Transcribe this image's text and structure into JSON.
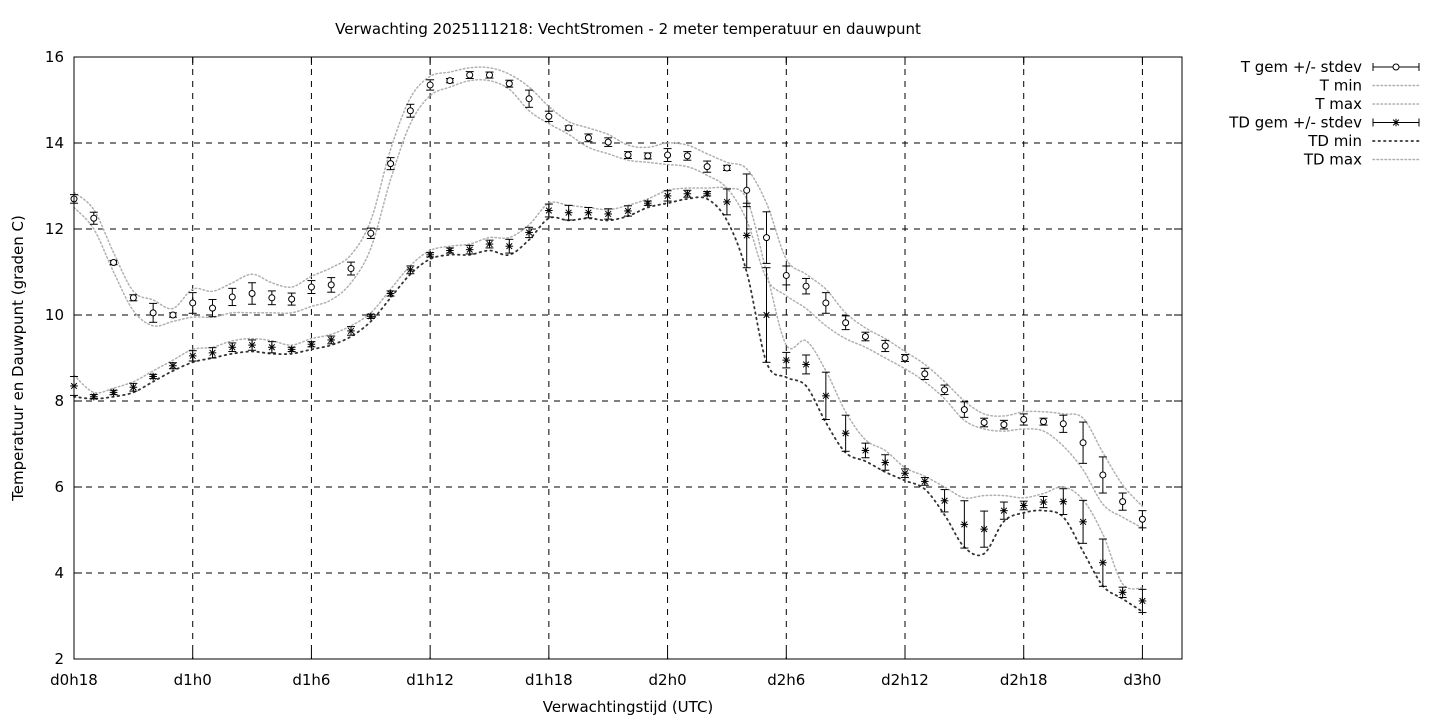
{
  "chart_data": {
    "type": "line",
    "title": "Verwachting 2025111218: VechtStromen - 2 meter temperatuur en dauwpunt",
    "xlabel": "Verwachtingstijd (UTC)",
    "ylabel": "Temperatuur en Dauwpunt (graden C)",
    "xlim": [
      0,
      56
    ],
    "ylim": [
      2,
      16
    ],
    "grid": true,
    "legend_position": "outside-right",
    "x_ticks": [
      {
        "x": 0,
        "label": "d0h18"
      },
      {
        "x": 6,
        "label": "d1h0"
      },
      {
        "x": 12,
        "label": "d1h6"
      },
      {
        "x": 18,
        "label": "d1h12"
      },
      {
        "x": 24,
        "label": "d1h18"
      },
      {
        "x": 30,
        "label": "d2h0"
      },
      {
        "x": 36,
        "label": "d2h6"
      },
      {
        "x": 42,
        "label": "d2h12"
      },
      {
        "x": 48,
        "label": "d2h18"
      },
      {
        "x": 54,
        "label": "d3h0"
      }
    ],
    "y_ticks": [
      2,
      4,
      6,
      8,
      10,
      12,
      14,
      16
    ],
    "legend": [
      {
        "label": "T gem +/- stdev",
        "style": "errorbar-circle"
      },
      {
        "label": "T min",
        "style": "dotted-light"
      },
      {
        "label": "T max",
        "style": "dotted-light"
      },
      {
        "label": "TD gem +/- stdev",
        "style": "errorbar-star"
      },
      {
        "label": "TD min",
        "style": "dotted-dark"
      },
      {
        "label": "TD max",
        "style": "dotted-light"
      }
    ],
    "x": [
      0,
      1,
      2,
      3,
      4,
      5,
      6,
      7,
      8,
      9,
      10,
      11,
      12,
      13,
      14,
      15,
      16,
      17,
      18,
      19,
      20,
      21,
      22,
      23,
      24,
      25,
      26,
      27,
      28,
      29,
      30,
      31,
      32,
      33,
      34,
      35,
      36,
      37,
      38,
      39,
      40,
      41,
      42,
      43,
      44,
      45,
      46,
      47,
      48,
      49,
      50,
      51,
      52,
      53,
      54
    ],
    "series": [
      {
        "name": "T gem +/- stdev",
        "marker": "circle",
        "values": [
          12.7,
          12.25,
          11.22,
          10.4,
          10.05,
          10.0,
          10.28,
          10.16,
          10.42,
          10.5,
          10.4,
          10.37,
          10.65,
          10.7,
          11.08,
          11.9,
          13.52,
          14.75,
          15.35,
          15.45,
          15.58,
          15.58,
          15.38,
          15.03,
          14.62,
          14.35,
          14.12,
          14.02,
          13.72,
          13.7,
          13.72,
          13.7,
          13.45,
          13.42,
          12.9,
          11.8,
          10.92,
          10.67,
          10.28,
          9.82,
          9.5,
          9.28,
          9.0,
          8.63,
          8.26,
          7.8,
          7.5,
          7.45,
          7.57,
          7.52,
          7.47,
          7.03,
          6.28,
          5.66,
          5.25
        ],
        "stdev": [
          0.1,
          0.14,
          0.05,
          0.07,
          0.22,
          0.05,
          0.24,
          0.2,
          0.2,
          0.25,
          0.16,
          0.14,
          0.15,
          0.17,
          0.15,
          0.12,
          0.14,
          0.15,
          0.12,
          0.05,
          0.08,
          0.07,
          0.08,
          0.2,
          0.12,
          0.05,
          0.09,
          0.1,
          0.08,
          0.07,
          0.15,
          0.1,
          0.13,
          0.06,
          0.38,
          0.6,
          0.22,
          0.18,
          0.24,
          0.16,
          0.1,
          0.13,
          0.08,
          0.13,
          0.11,
          0.18,
          0.1,
          0.1,
          0.13,
          0.08,
          0.2,
          0.48,
          0.42,
          0.2,
          0.2
        ]
      },
      {
        "name": "TD gem +/- stdev",
        "marker": "star",
        "values": [
          8.35,
          8.1,
          8.2,
          8.32,
          8.57,
          8.82,
          9.05,
          9.12,
          9.25,
          9.3,
          9.25,
          9.2,
          9.32,
          9.42,
          9.63,
          9.97,
          10.5,
          11.05,
          11.4,
          11.5,
          11.52,
          11.65,
          11.6,
          11.92,
          12.43,
          12.38,
          12.38,
          12.35,
          12.42,
          12.6,
          12.77,
          12.82,
          12.82,
          12.63,
          11.85,
          10.0,
          8.95,
          8.85,
          8.12,
          7.25,
          6.85,
          6.57,
          6.32,
          6.13,
          5.68,
          5.13,
          5.02,
          5.45,
          5.57,
          5.65,
          5.66,
          5.19,
          4.24,
          3.55,
          3.35
        ],
        "stdev": [
          0.22,
          0.05,
          0.05,
          0.09,
          0.05,
          0.07,
          0.12,
          0.12,
          0.1,
          0.12,
          0.13,
          0.05,
          0.06,
          0.09,
          0.1,
          0.05,
          0.06,
          0.09,
          0.05,
          0.06,
          0.1,
          0.09,
          0.16,
          0.12,
          0.15,
          0.17,
          0.12,
          0.12,
          0.12,
          0.05,
          0.12,
          0.08,
          0.05,
          0.3,
          0.75,
          1.1,
          0.18,
          0.22,
          0.55,
          0.42,
          0.17,
          0.18,
          0.1,
          0.09,
          0.26,
          0.55,
          0.42,
          0.2,
          0.1,
          0.13,
          0.3,
          0.5,
          0.55,
          0.12,
          0.27
        ]
      },
      {
        "name": "T min",
        "values": [
          12.5,
          12.0,
          11.0,
          10.1,
          9.75,
          9.85,
          9.95,
          9.95,
          10.05,
          10.05,
          10.05,
          10.05,
          10.2,
          10.35,
          10.75,
          11.55,
          13.15,
          14.45,
          15.1,
          15.3,
          15.45,
          15.45,
          15.25,
          14.75,
          14.45,
          14.2,
          13.9,
          13.75,
          13.6,
          13.55,
          13.5,
          13.45,
          13.25,
          12.95,
          12.2,
          10.85,
          10.45,
          10.15,
          9.75,
          9.45,
          9.25,
          9.0,
          8.75,
          8.45,
          8.05,
          7.55,
          7.35,
          7.3,
          7.35,
          7.3,
          6.95,
          6.4,
          5.6,
          5.3,
          5.05
        ]
      },
      {
        "name": "T max",
        "values": [
          12.85,
          12.45,
          11.45,
          10.55,
          10.35,
          10.15,
          10.6,
          10.55,
          10.75,
          10.95,
          10.75,
          10.65,
          10.9,
          11.1,
          11.4,
          12.2,
          13.85,
          15.05,
          15.55,
          15.65,
          15.75,
          15.75,
          15.6,
          15.3,
          14.85,
          14.5,
          14.35,
          14.2,
          13.95,
          13.9,
          14.0,
          13.95,
          13.75,
          13.55,
          13.4,
          12.6,
          11.3,
          10.95,
          10.6,
          10.05,
          9.7,
          9.45,
          9.15,
          8.85,
          8.45,
          8.0,
          7.7,
          7.65,
          7.75,
          7.75,
          7.7,
          7.6,
          6.8,
          6.05,
          5.55
        ]
      },
      {
        "name": "TD min",
        "values": [
          8.1,
          8.05,
          8.1,
          8.2,
          8.45,
          8.7,
          8.9,
          9.0,
          9.1,
          9.15,
          9.1,
          9.1,
          9.2,
          9.3,
          9.5,
          9.85,
          10.4,
          10.95,
          11.3,
          11.4,
          11.4,
          11.5,
          11.4,
          11.75,
          12.25,
          12.2,
          12.25,
          12.2,
          12.3,
          12.5,
          12.6,
          12.7,
          12.7,
          12.2,
          11.0,
          8.9,
          8.55,
          8.35,
          7.5,
          6.8,
          6.6,
          6.35,
          6.15,
          5.95,
          5.35,
          4.6,
          4.45,
          5.2,
          5.4,
          5.45,
          5.3,
          4.5,
          3.7,
          3.4,
          3.1
        ]
      },
      {
        "name": "TD max",
        "values": [
          8.6,
          8.2,
          8.3,
          8.45,
          8.7,
          8.95,
          9.2,
          9.25,
          9.4,
          9.45,
          9.4,
          9.3,
          9.45,
          9.55,
          9.75,
          10.05,
          10.6,
          11.15,
          11.5,
          11.6,
          11.65,
          11.8,
          11.8,
          12.1,
          12.6,
          12.55,
          12.5,
          12.45,
          12.55,
          12.7,
          12.9,
          12.95,
          12.95,
          12.95,
          12.7,
          11.0,
          9.3,
          9.4,
          8.7,
          7.75,
          7.1,
          6.85,
          6.45,
          6.25,
          6.0,
          5.75,
          5.8,
          5.8,
          5.75,
          5.85,
          6.0,
          5.7,
          4.9,
          3.75,
          3.65
        ]
      }
    ]
  }
}
